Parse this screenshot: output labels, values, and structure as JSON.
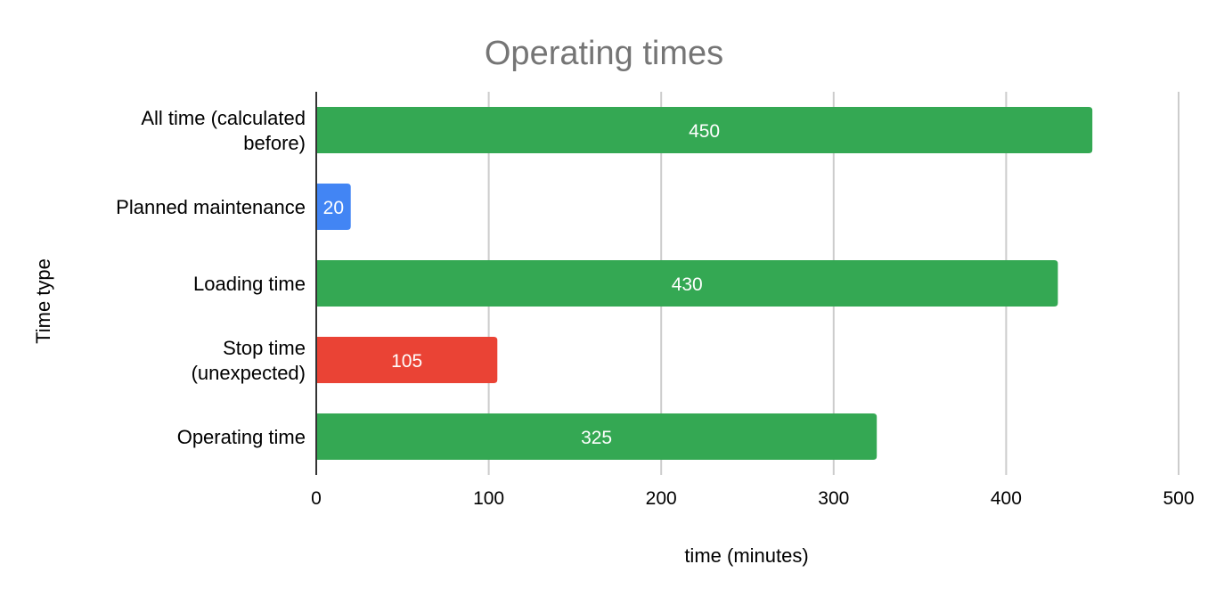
{
  "chart_data": {
    "type": "bar",
    "orientation": "horizontal",
    "title": "Operating times",
    "xlabel": "time (minutes)",
    "ylabel": "Time type",
    "xlim": [
      0,
      500
    ],
    "x_ticks": [
      "0",
      "100",
      "200",
      "300",
      "400",
      "500"
    ],
    "grid": true,
    "legend": "none",
    "categories": [
      [
        "All time (calculated",
        "before)"
      ],
      [
        "Planned maintenance"
      ],
      [
        "Loading time"
      ],
      [
        "Stop time",
        "(unexpected)"
      ],
      [
        "Operating time"
      ]
    ],
    "values": [
      450,
      20,
      430,
      105,
      325
    ],
    "data_labels": [
      "450",
      "20",
      "430",
      "105",
      "325"
    ],
    "bar_colors": [
      "#34a853",
      "#4285f4",
      "#34a853",
      "#ea4335",
      "#34a853"
    ]
  }
}
